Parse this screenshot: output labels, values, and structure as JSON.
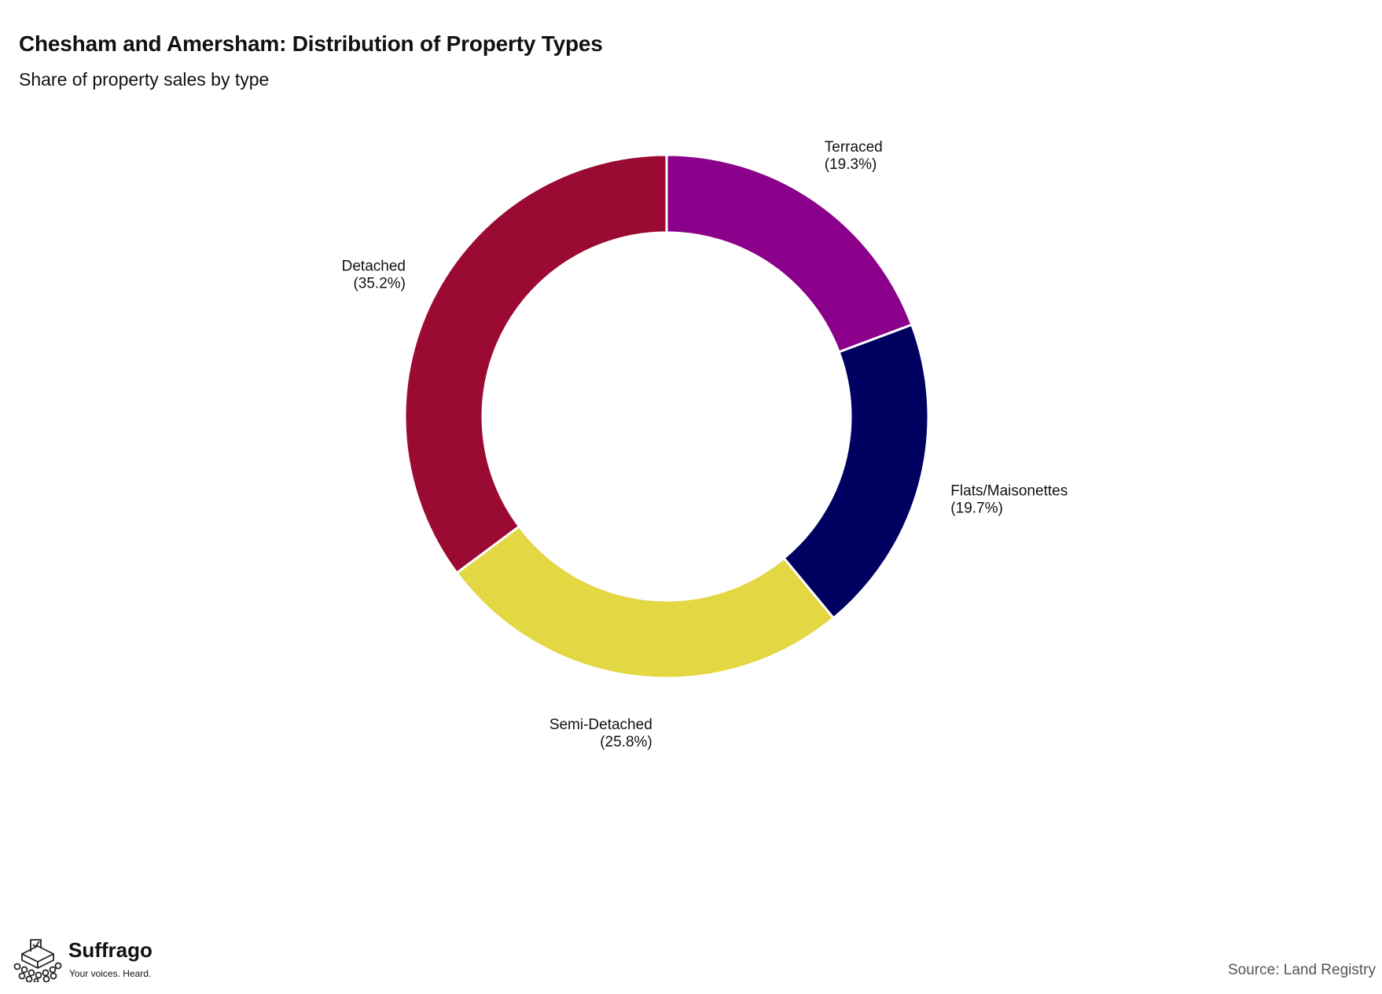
{
  "chart_data": {
    "type": "pie",
    "title": "Chesham and Amersham: Distribution of Property Types",
    "subtitle": "Share of property sales by type",
    "categories": [
      "Terraced",
      "Flats/Maisonettes",
      "Semi-Detached",
      "Detached"
    ],
    "values": [
      19.3,
      19.7,
      25.8,
      35.2
    ],
    "value_labels": [
      "(19.3%)",
      "(19.7%)",
      "(25.8%)",
      "(35.2%)"
    ],
    "colors": [
      "#8b008b",
      "#000060",
      "#e3d743",
      "#9a0a33"
    ],
    "donut": true,
    "start": "top, clockwise",
    "legend": "none (direct labels)"
  },
  "footer": {
    "logo_name": "Suffrago",
    "logo_tagline": "Your voices. Heard.",
    "source": "Source: Land Registry"
  }
}
